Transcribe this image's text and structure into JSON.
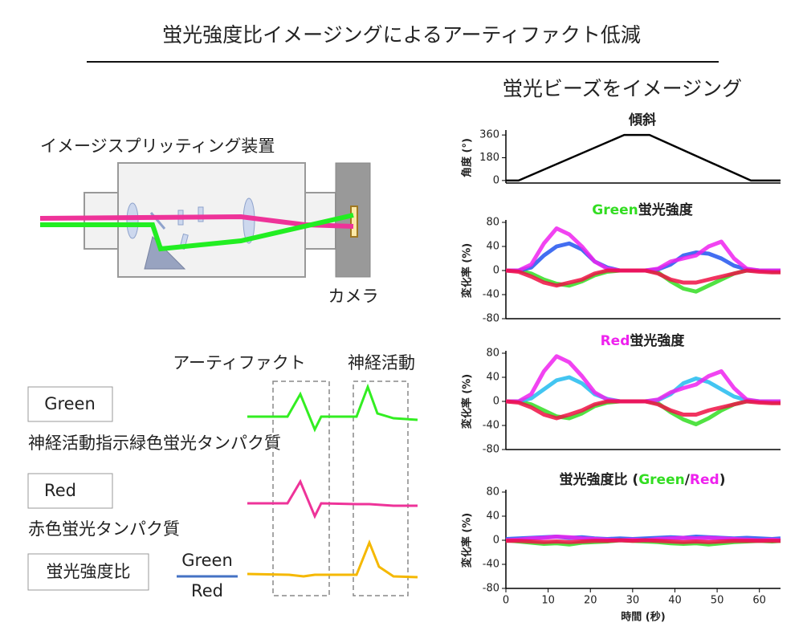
{
  "title": "蛍光強度比イメージングによるアーティファクト低減",
  "setup": {
    "label": "イメージスプリッティング装置",
    "camera": "カメラ"
  },
  "artifact": {
    "title": "アーティファクト",
    "neural": "神経活動",
    "green": {
      "box": "Green",
      "desc": "神経活動指示緑色蛍光タンパク質"
    },
    "red": {
      "box": "Red",
      "desc": "赤色蛍光タンパク質"
    },
    "ratio": {
      "box": "蛍光強度比",
      "numerator": "Green",
      "denominator": "Red"
    }
  },
  "beads_title": "蛍光ビーズをイメージング",
  "chart_data": [
    {
      "type": "line",
      "title": "傾斜",
      "ylabel": "角度 (°)",
      "xlim": [
        0,
        65
      ],
      "ylim": [
        -20,
        380
      ],
      "yticks": [
        0,
        180,
        360
      ],
      "x": [
        0,
        3,
        28,
        34,
        58,
        65
      ],
      "values": [
        0,
        0,
        360,
        360,
        0,
        0
      ],
      "color": "#000000"
    },
    {
      "type": "line",
      "title": [
        {
          "text": "Green",
          "color": "#33dd22"
        },
        {
          "text": "蛍光強度"
        }
      ],
      "ylabel": "変化率 (%)",
      "xlim": [
        0,
        65
      ],
      "ylim": [
        -80,
        80
      ],
      "yticks": [
        -80,
        -40,
        0,
        40,
        80
      ],
      "x": [
        0,
        3,
        6,
        9,
        12,
        15,
        18,
        21,
        24,
        27,
        30,
        33,
        36,
        39,
        42,
        45,
        48,
        51,
        54,
        57,
        60,
        63,
        65
      ],
      "series": [
        {
          "color": "#33dd22",
          "values": [
            0,
            0,
            -5,
            -15,
            -22,
            -25,
            -18,
            -8,
            -2,
            0,
            0,
            0,
            -3,
            -18,
            -30,
            -35,
            -25,
            -15,
            -5,
            0,
            0,
            -2,
            -2
          ]
        },
        {
          "color": "#2255ee",
          "values": [
            0,
            0,
            5,
            25,
            40,
            45,
            35,
            15,
            5,
            0,
            0,
            0,
            2,
            10,
            25,
            30,
            28,
            20,
            8,
            2,
            0,
            0,
            0
          ]
        },
        {
          "color": "#ee22ee",
          "values": [
            0,
            0,
            10,
            45,
            70,
            60,
            40,
            15,
            3,
            0,
            0,
            0,
            3,
            15,
            20,
            25,
            40,
            48,
            20,
            3,
            0,
            0,
            0
          ]
        },
        {
          "color": "#ee1144",
          "values": [
            0,
            -2,
            -10,
            -20,
            -25,
            -20,
            -15,
            -5,
            0,
            0,
            0,
            0,
            -5,
            -15,
            -20,
            -20,
            -15,
            -10,
            -5,
            0,
            -2,
            -3,
            -3
          ]
        }
      ]
    },
    {
      "type": "line",
      "title": [
        {
          "text": "Red",
          "color": "#ee22ee"
        },
        {
          "text": "蛍光強度"
        }
      ],
      "ylabel": "変化率 (%)",
      "xlim": [
        0,
        65
      ],
      "ylim": [
        -80,
        80
      ],
      "yticks": [
        -80,
        -40,
        0,
        40,
        80
      ],
      "x": [
        0,
        3,
        6,
        9,
        12,
        15,
        18,
        21,
        24,
        27,
        30,
        33,
        36,
        39,
        42,
        45,
        48,
        51,
        54,
        57,
        60,
        63,
        65
      ],
      "series": [
        {
          "color": "#33dd22",
          "values": [
            0,
            0,
            -5,
            -15,
            -25,
            -28,
            -20,
            -8,
            -2,
            0,
            0,
            0,
            -3,
            -18,
            -30,
            -38,
            -28,
            -15,
            -5,
            0,
            0,
            -2,
            -2
          ]
        },
        {
          "color": "#22bbee",
          "values": [
            0,
            0,
            5,
            20,
            35,
            40,
            30,
            12,
            4,
            0,
            0,
            0,
            2,
            12,
            30,
            38,
            32,
            20,
            8,
            2,
            0,
            0,
            0
          ]
        },
        {
          "color": "#ee22ee",
          "values": [
            0,
            0,
            12,
            50,
            75,
            65,
            42,
            15,
            3,
            0,
            0,
            0,
            3,
            15,
            22,
            28,
            42,
            50,
            22,
            3,
            0,
            0,
            0
          ]
        },
        {
          "color": "#ee1144",
          "values": [
            0,
            -2,
            -10,
            -22,
            -28,
            -22,
            -15,
            -5,
            0,
            0,
            0,
            0,
            -5,
            -15,
            -22,
            -22,
            -15,
            -10,
            -5,
            0,
            -2,
            -3,
            -3
          ]
        }
      ]
    },
    {
      "type": "line",
      "title": [
        {
          "text": "蛍光強度比 ("
        },
        {
          "text": "Green",
          "color": "#33dd22"
        },
        {
          "text": "/"
        },
        {
          "text": "Red",
          "color": "#ee22ee"
        },
        {
          "text": ")"
        }
      ],
      "ylabel": "変化率 (%)",
      "xlabel": "時間 (秒)",
      "xlim": [
        0,
        65
      ],
      "ylim": [
        -80,
        80
      ],
      "yticks": [
        -80,
        -40,
        0,
        40,
        80
      ],
      "xticks": [
        0,
        10,
        20,
        30,
        40,
        50,
        60
      ],
      "x": [
        0,
        3,
        6,
        9,
        12,
        15,
        18,
        21,
        24,
        27,
        30,
        33,
        36,
        39,
        42,
        45,
        48,
        51,
        54,
        57,
        60,
        63,
        65
      ],
      "series": [
        {
          "color": "#33dd22",
          "values": [
            0,
            -2,
            -4,
            -6,
            -5,
            -7,
            -4,
            -3,
            -2,
            0,
            -1,
            -2,
            -3,
            -5,
            -6,
            -5,
            -7,
            -5,
            -3,
            -2,
            -1,
            -2,
            -1
          ]
        },
        {
          "color": "#2255ee",
          "values": [
            2,
            3,
            4,
            5,
            6,
            4,
            5,
            3,
            2,
            3,
            2,
            3,
            4,
            5,
            4,
            6,
            5,
            4,
            3,
            4,
            3,
            2,
            3
          ]
        },
        {
          "color": "#ee22ee",
          "values": [
            0,
            1,
            3,
            4,
            6,
            5,
            3,
            2,
            1,
            0,
            1,
            0,
            2,
            3,
            4,
            3,
            4,
            3,
            2,
            1,
            0,
            1,
            0
          ]
        },
        {
          "color": "#ee1144",
          "values": [
            -1,
            -1,
            -2,
            -3,
            -2,
            -3,
            -2,
            -1,
            -1,
            0,
            -1,
            0,
            -1,
            -2,
            -3,
            -2,
            -3,
            -2,
            -1,
            -1,
            -1,
            -1,
            -1
          ]
        }
      ]
    }
  ]
}
